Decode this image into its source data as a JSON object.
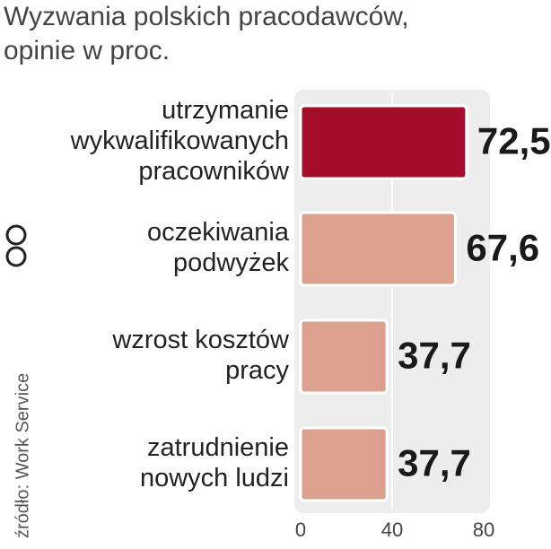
{
  "chart_data": {
    "type": "barh",
    "title": "Wyzwania polskich pracodawców,\nopinie w proc.",
    "source": "źródło: Work Service",
    "categories": [
      "utrzymanie\nwykwalifikowanych\npracowników",
      "oczekiwania\npodwyżek",
      "wzrost kosztów\npracy",
      "zatrudnienie\nnowych ludzi"
    ],
    "values": [
      72.5,
      67.6,
      37.7,
      37.7
    ],
    "value_labels": [
      "72,5",
      "67,6",
      "37,7",
      "37,7"
    ],
    "colors": [
      "#a50e2a",
      "#dba08e",
      "#dba08e",
      "#dba08e"
    ],
    "xlim": [
      0,
      80
    ],
    "xticks": [
      0,
      40,
      80
    ],
    "grid": true
  }
}
